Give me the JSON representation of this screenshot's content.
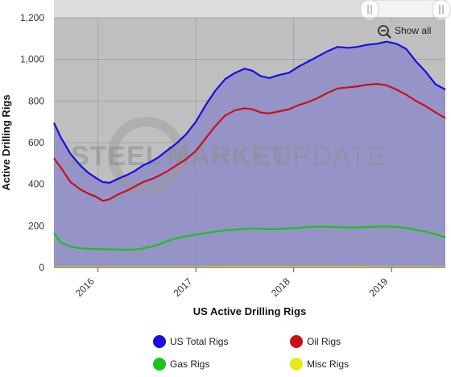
{
  "watermark": {
    "word1": "STEEL",
    "word2": "MARKET",
    "word3": "UPDATE"
  },
  "controls": {
    "show_all_label": "Show all"
  },
  "chart_data": {
    "type": "area",
    "title": "",
    "xlabel": "US Active Drilling Rigs",
    "ylabel": "Active Drilling Rigs",
    "ylim": [
      0,
      1200
    ],
    "xlim": [
      2015.55,
      2019.55
    ],
    "yticks": [
      0,
      200,
      400,
      600,
      800,
      1000,
      1200
    ],
    "ytick_labels": [
      "0",
      "200",
      "400",
      "600",
      "800",
      "1,000",
      "1,200"
    ],
    "xticks": [
      2016,
      2017,
      2018,
      2019
    ],
    "xtick_labels": [
      "2016",
      "2017",
      "2018",
      "2019"
    ],
    "grid": true,
    "legend_position": "bottom",
    "series": [
      {
        "name": "US Total Rigs",
        "color": "#1a0dde",
        "fill": "#9390c6",
        "x": [
          2015.55,
          2015.62,
          2015.72,
          2015.82,
          2015.9,
          2015.98,
          2016.05,
          2016.12,
          2016.2,
          2016.3,
          2016.38,
          2016.46,
          2016.55,
          2016.62,
          2016.7,
          2016.8,
          2016.9,
          2017.0,
          2017.1,
          2017.2,
          2017.3,
          2017.4,
          2017.5,
          2017.58,
          2017.66,
          2017.75,
          2017.85,
          2017.95,
          2018.05,
          2018.15,
          2018.25,
          2018.35,
          2018.45,
          2018.55,
          2018.65,
          2018.75,
          2018.85,
          2018.95,
          2019.05,
          2019.15,
          2019.25,
          2019.35,
          2019.45,
          2019.55
        ],
        "values": [
          695,
          625,
          545,
          490,
          455,
          430,
          410,
          407,
          425,
          445,
          465,
          490,
          510,
          530,
          560,
          595,
          640,
          700,
          780,
          850,
          905,
          935,
          955,
          945,
          920,
          910,
          925,
          935,
          965,
          990,
          1015,
          1040,
          1060,
          1055,
          1060,
          1070,
          1075,
          1085,
          1075,
          1050,
          990,
          940,
          880,
          855
        ]
      },
      {
        "name": "Oil Rigs",
        "color": "#c8101a",
        "fill": "",
        "x": [
          2015.55,
          2015.62,
          2015.72,
          2015.82,
          2015.9,
          2015.98,
          2016.05,
          2016.12,
          2016.2,
          2016.3,
          2016.38,
          2016.46,
          2016.55,
          2016.62,
          2016.7,
          2016.8,
          2016.9,
          2017.0,
          2017.1,
          2017.2,
          2017.3,
          2017.4,
          2017.5,
          2017.58,
          2017.66,
          2017.75,
          2017.85,
          2017.95,
          2018.05,
          2018.15,
          2018.25,
          2018.35,
          2018.45,
          2018.55,
          2018.65,
          2018.75,
          2018.85,
          2018.95,
          2019.05,
          2019.15,
          2019.25,
          2019.35,
          2019.45,
          2019.55
        ],
        "values": [
          525,
          480,
          410,
          375,
          355,
          340,
          320,
          328,
          350,
          370,
          390,
          410,
          425,
          440,
          460,
          490,
          520,
          560,
          620,
          680,
          730,
          755,
          765,
          760,
          745,
          740,
          750,
          760,
          780,
          795,
          815,
          840,
          860,
          865,
          870,
          878,
          882,
          875,
          855,
          830,
          800,
          775,
          745,
          718
        ]
      },
      {
        "name": "Gas Rigs",
        "color": "#18c41a",
        "fill": "",
        "x": [
          2015.55,
          2015.62,
          2015.72,
          2015.82,
          2015.9,
          2015.98,
          2016.05,
          2016.12,
          2016.2,
          2016.3,
          2016.38,
          2016.46,
          2016.55,
          2016.62,
          2016.7,
          2016.8,
          2016.9,
          2017.0,
          2017.1,
          2017.2,
          2017.3,
          2017.4,
          2017.5,
          2017.58,
          2017.66,
          2017.75,
          2017.85,
          2017.95,
          2018.05,
          2018.15,
          2018.25,
          2018.35,
          2018.45,
          2018.55,
          2018.65,
          2018.75,
          2018.85,
          2018.95,
          2019.05,
          2019.15,
          2019.25,
          2019.35,
          2019.45,
          2019.55
        ],
        "values": [
          165,
          120,
          100,
          92,
          90,
          88,
          88,
          87,
          86,
          85,
          86,
          92,
          100,
          110,
          125,
          140,
          150,
          158,
          165,
          172,
          178,
          182,
          186,
          187,
          186,
          184,
          185,
          187,
          190,
          194,
          196,
          195,
          193,
          192,
          192,
          194,
          196,
          197,
          194,
          190,
          180,
          172,
          160,
          145
        ]
      },
      {
        "name": "Misc Rigs",
        "color": "#e8e81a",
        "fill": "",
        "x": [
          2015.55,
          2016.0,
          2016.5,
          2017.0,
          2017.5,
          2018.0,
          2018.5,
          2019.0,
          2019.55
        ],
        "values": [
          2,
          2,
          2,
          2,
          3,
          3,
          3,
          2,
          2
        ]
      }
    ]
  }
}
